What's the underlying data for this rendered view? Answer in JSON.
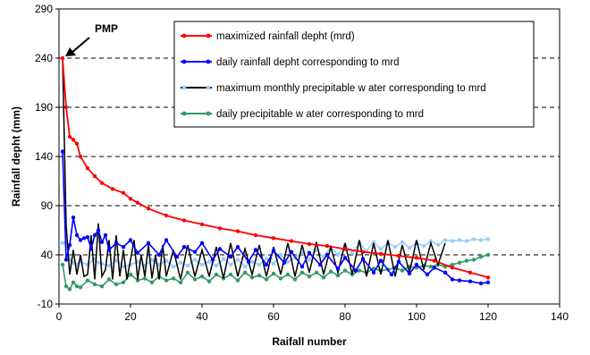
{
  "chart_data": {
    "type": "line",
    "xlabel": "Raifall number",
    "ylabel": "Rainfall depht (mm)",
    "xlim": [
      0,
      140
    ],
    "ylim": [
      -10,
      290
    ],
    "x_ticks": [
      0,
      20,
      40,
      60,
      80,
      100,
      120,
      140
    ],
    "y_ticks": [
      -10,
      40,
      90,
      140,
      190,
      240,
      290
    ],
    "grid": "horizontal dashed",
    "legend_position": "top-right",
    "annotation": {
      "text": "PMP",
      "x": 1,
      "y": 240
    },
    "series": [
      {
        "name": "maximized rainfall depht (mrd)",
        "color": "#ff0000",
        "x": [
          1,
          2,
          3,
          4,
          5,
          6,
          8,
          10,
          12,
          15,
          18,
          20,
          22,
          25,
          30,
          35,
          40,
          45,
          50,
          55,
          60,
          65,
          70,
          75,
          80,
          85,
          90,
          95,
          100,
          105,
          110,
          115,
          120
        ],
        "values": [
          240,
          190,
          160,
          157,
          153,
          140,
          128,
          120,
          113,
          107,
          103,
          97,
          93,
          87,
          80,
          75,
          71,
          67,
          64,
          60,
          57,
          54,
          51,
          49,
          46,
          43,
          41,
          39,
          37,
          34,
          27,
          22,
          17
        ]
      },
      {
        "name": "daily rainfall depht corresponding to mrd",
        "color": "#0000ff",
        "x": [
          1,
          2,
          3,
          4,
          5,
          6,
          7,
          8,
          9,
          10,
          11,
          12,
          13,
          14,
          16,
          18,
          20,
          22,
          25,
          28,
          30,
          33,
          35,
          38,
          40,
          43,
          45,
          48,
          50,
          53,
          55,
          58,
          60,
          63,
          65,
          68,
          70,
          73,
          75,
          78,
          80,
          83,
          85,
          88,
          90,
          93,
          95,
          98,
          100,
          103,
          105,
          108,
          110,
          112,
          115,
          118,
          120
        ],
        "values": [
          145,
          35,
          50,
          78,
          60,
          55,
          57,
          58,
          46,
          60,
          65,
          53,
          60,
          45,
          52,
          48,
          55,
          42,
          52,
          40,
          55,
          38,
          48,
          43,
          52,
          35,
          46,
          38,
          48,
          33,
          45,
          30,
          44,
          32,
          43,
          28,
          42,
          30,
          40,
          26,
          37,
          24,
          36,
          22,
          34,
          20,
          33,
          21,
          30,
          20,
          27,
          22,
          15,
          14,
          13,
          11,
          12
        ]
      },
      {
        "name": "maximum monthly precipitable w ater corresponding to mrd",
        "color": "#000000",
        "marker_color": "#99ccff",
        "x": [
          1,
          2,
          3,
          4,
          5,
          6,
          8,
          10,
          11,
          12,
          14,
          16,
          18,
          20,
          22,
          24,
          26,
          28,
          30,
          32,
          34,
          36,
          38,
          40,
          42,
          44,
          46,
          48,
          50,
          52,
          54,
          56,
          58,
          60,
          62,
          64,
          66,
          68,
          70,
          72,
          74,
          76,
          78,
          80,
          82,
          84,
          86,
          88,
          90,
          92,
          94,
          96,
          98,
          100,
          102,
          104,
          106,
          108,
          110,
          112,
          114,
          116,
          118,
          120
        ],
        "values": [
          52,
          52,
          35,
          32,
          30,
          33,
          30,
          36,
          32,
          31,
          29,
          34,
          28,
          30,
          33,
          29,
          35,
          30,
          34,
          28,
          32,
          29,
          35,
          30,
          33,
          29,
          36,
          30,
          35,
          28,
          33,
          30,
          36,
          31,
          40,
          33,
          37,
          42,
          35,
          45,
          38,
          48,
          40,
          50,
          42,
          52,
          44,
          53,
          46,
          52,
          48,
          53,
          47,
          52,
          49,
          54,
          50,
          55,
          54,
          55,
          54,
          56,
          55,
          56
        ]
      },
      {
        "name": "daily precipitable w ater corresponding to mrd",
        "color": "#339966",
        "x": [
          1,
          2,
          3,
          4,
          5,
          6,
          8,
          10,
          12,
          14,
          16,
          18,
          20,
          22,
          24,
          26,
          28,
          30,
          32,
          34,
          36,
          38,
          40,
          42,
          44,
          46,
          48,
          50,
          52,
          54,
          56,
          58,
          60,
          62,
          64,
          66,
          68,
          70,
          72,
          74,
          76,
          78,
          80,
          82,
          84,
          86,
          88,
          90,
          92,
          94,
          96,
          98,
          100,
          102,
          104,
          106,
          108,
          110,
          112,
          114,
          116,
          118,
          120
        ],
        "values": [
          30,
          8,
          5,
          12,
          8,
          7,
          14,
          10,
          8,
          15,
          10,
          12,
          20,
          14,
          16,
          12,
          18,
          14,
          16,
          12,
          22,
          15,
          18,
          13,
          20,
          16,
          20,
          14,
          22,
          17,
          19,
          15,
          21,
          16,
          20,
          15,
          22,
          18,
          22,
          17,
          23,
          19,
          24,
          20,
          24,
          22,
          26,
          24,
          25,
          27,
          24,
          28,
          27,
          29,
          28,
          30,
          28,
          30,
          32,
          34,
          35,
          38,
          40
        ]
      }
    ]
  },
  "spike_series": {
    "x": [
      1,
      2,
      3,
      4,
      5,
      6,
      7,
      8,
      9,
      10,
      11,
      12,
      13,
      14,
      15,
      16,
      17,
      18,
      19,
      20,
      21,
      22,
      23,
      24,
      25,
      26,
      27,
      28,
      29,
      30,
      32,
      34,
      36,
      38,
      40,
      42,
      44,
      46,
      48,
      50,
      52,
      54,
      56,
      58,
      60,
      62,
      64,
      66,
      68,
      70,
      72,
      74,
      76,
      78,
      80,
      82,
      84,
      86,
      88,
      90,
      92,
      94,
      96,
      98,
      100,
      102,
      104,
      106,
      108
    ],
    "values": [
      240,
      70,
      20,
      45,
      20,
      40,
      18,
      20,
      60,
      15,
      72,
      18,
      25,
      55,
      15,
      60,
      18,
      45,
      15,
      35,
      55,
      15,
      40,
      18,
      50,
      16,
      40,
      15,
      50,
      18,
      45,
      15,
      50,
      18,
      45,
      18,
      48,
      16,
      52,
      18,
      46,
      20,
      50,
      18,
      48,
      20,
      52,
      18,
      50,
      22,
      53,
      20,
      48,
      22,
      52,
      20,
      55,
      18,
      52,
      20,
      55,
      18,
      50,
      22,
      55,
      25,
      52,
      30,
      52
    ]
  }
}
